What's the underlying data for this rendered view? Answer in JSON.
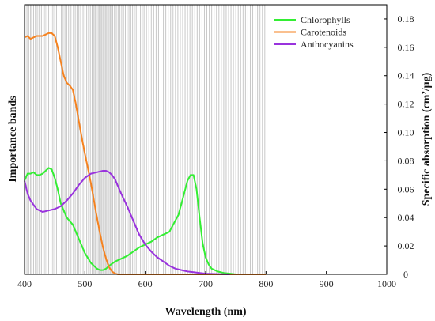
{
  "chart_data": {
    "type": "line",
    "xlabel": "Wavelength (nm)",
    "ylabel_left": "Importance bands",
    "ylabel_right": "Specific absorption (cm²/µg)",
    "xlim": [
      400,
      1000
    ],
    "ylim": [
      0,
      0.19
    ],
    "x_ticks": [
      400,
      500,
      600,
      700,
      800,
      900,
      1000
    ],
    "y_ticks": [
      0,
      0.02,
      0.04,
      0.06,
      0.08,
      0.1,
      0.12,
      0.14,
      0.16,
      0.18
    ],
    "y_tick_labels": [
      "0",
      "0.02",
      "0.04",
      "0.06",
      "0.08",
      "0.10",
      "0.12",
      "0.14",
      "0.16",
      "0.18"
    ],
    "legend_position": "top-right",
    "importance_band_color": "#c8c8c8",
    "importance_bands": [
      401,
      404,
      407,
      410,
      412,
      415,
      418,
      421,
      424,
      428,
      431,
      434,
      437,
      440,
      444,
      447,
      450,
      453,
      457,
      461,
      464,
      467,
      470,
      473,
      477,
      481,
      484,
      487,
      490,
      493,
      497,
      500,
      503,
      506,
      509,
      512,
      515,
      517,
      519,
      522,
      524,
      526,
      528,
      530,
      532,
      534,
      536,
      538,
      540,
      542,
      544,
      546,
      549,
      552,
      555,
      558,
      561,
      564,
      567,
      570,
      573,
      576,
      579,
      582,
      585,
      588,
      592,
      595,
      598,
      602,
      606,
      610,
      614,
      618,
      622,
      626,
      630,
      634,
      638,
      642,
      646,
      650,
      654,
      658,
      662,
      666,
      670,
      674,
      678,
      682,
      686,
      690,
      694,
      698,
      702,
      706,
      710,
      714,
      718,
      722,
      726,
      730,
      734,
      738,
      742,
      746,
      750,
      754,
      758,
      762,
      766,
      770,
      774,
      778,
      782,
      786,
      790,
      794,
      798
    ],
    "series": [
      {
        "name": "Chlorophylls",
        "color": "#33ee33",
        "x": [
          400,
          405,
          410,
          415,
          420,
          425,
          430,
          435,
          440,
          445,
          450,
          455,
          460,
          465,
          470,
          480,
          490,
          500,
          510,
          520,
          525,
          530,
          535,
          540,
          550,
          560,
          570,
          580,
          590,
          600,
          610,
          620,
          630,
          640,
          650,
          655,
          660,
          665,
          670,
          675,
          680,
          685,
          690,
          695,
          700,
          705,
          710,
          720,
          730,
          740,
          750
        ],
        "y": [
          0.066,
          0.071,
          0.071,
          0.072,
          0.07,
          0.07,
          0.071,
          0.073,
          0.075,
          0.074,
          0.068,
          0.06,
          0.05,
          0.045,
          0.04,
          0.035,
          0.025,
          0.015,
          0.008,
          0.004,
          0.003,
          0.003,
          0.004,
          0.006,
          0.009,
          0.011,
          0.013,
          0.016,
          0.019,
          0.021,
          0.023,
          0.026,
          0.028,
          0.03,
          0.038,
          0.042,
          0.05,
          0.058,
          0.066,
          0.07,
          0.07,
          0.06,
          0.04,
          0.022,
          0.012,
          0.007,
          0.004,
          0.002,
          0.001,
          0.0005,
          0
        ]
      },
      {
        "name": "Carotenoids",
        "color": "#f5821f",
        "x": [
          400,
          405,
          410,
          415,
          420,
          425,
          430,
          435,
          440,
          445,
          450,
          455,
          460,
          465,
          470,
          475,
          480,
          485,
          490,
          495,
          500,
          505,
          510,
          515,
          520,
          525,
          530,
          535,
          540,
          545,
          550,
          555,
          560,
          600,
          700,
          800
        ],
        "y": [
          0.167,
          0.168,
          0.166,
          0.167,
          0.168,
          0.168,
          0.168,
          0.169,
          0.17,
          0.17,
          0.168,
          0.16,
          0.15,
          0.14,
          0.135,
          0.133,
          0.13,
          0.12,
          0.108,
          0.096,
          0.085,
          0.075,
          0.064,
          0.052,
          0.04,
          0.029,
          0.019,
          0.011,
          0.005,
          0.002,
          0.0005,
          0,
          0,
          0,
          0,
          0
        ]
      },
      {
        "name": "Anthocyanins",
        "color": "#9933dd",
        "x": [
          400,
          405,
          410,
          415,
          420,
          425,
          430,
          440,
          450,
          460,
          470,
          480,
          490,
          500,
          510,
          520,
          530,
          535,
          540,
          545,
          550,
          555,
          560,
          570,
          580,
          590,
          600,
          610,
          620,
          630,
          640,
          650,
          660,
          670,
          680,
          690,
          700,
          720,
          740
        ],
        "y": [
          0.066,
          0.057,
          0.052,
          0.049,
          0.046,
          0.045,
          0.044,
          0.045,
          0.046,
          0.048,
          0.052,
          0.057,
          0.063,
          0.068,
          0.071,
          0.072,
          0.073,
          0.073,
          0.072,
          0.07,
          0.067,
          0.062,
          0.057,
          0.048,
          0.038,
          0.028,
          0.021,
          0.016,
          0.012,
          0.009,
          0.006,
          0.004,
          0.003,
          0.002,
          0.0015,
          0.001,
          0.0005,
          0.0002,
          0
        ]
      }
    ]
  }
}
